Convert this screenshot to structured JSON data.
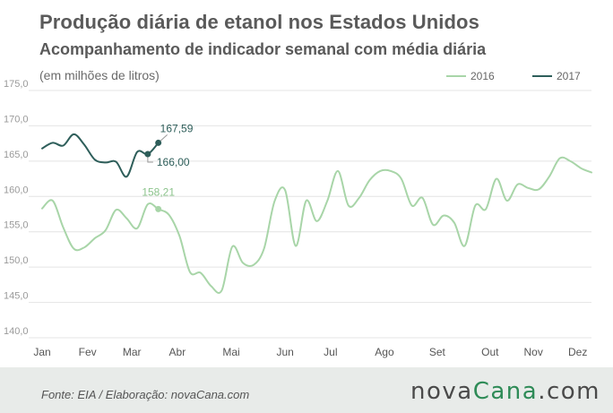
{
  "header": {
    "title": "Produção diária de etanol nos Estados Unidos",
    "subtitle": "Acompanhamento de indicador semanal com média diária",
    "unit_note": "(em milhões de litros)"
  },
  "footer": {
    "source": "Fonte:  EIA / Elaboração:  novaCana.com",
    "brand_prefix": "nova",
    "brand_accent": "Cana",
    "brand_suffix": ".com"
  },
  "colors": {
    "series_2016": "#a8d5a8",
    "series_2017": "#2e5e5a",
    "grid": "#e4e4e4",
    "tick_text": "#9a9a9a",
    "month_text": "#555555"
  },
  "chart_data": {
    "type": "line",
    "ylim": [
      140,
      175
    ],
    "y_ticks": [
      "140,0",
      "145,0",
      "150,0",
      "155,0",
      "160,0",
      "165,0",
      "170,0",
      "175,0"
    ],
    "y_tick_values": [
      140,
      145,
      150,
      155,
      160,
      165,
      170,
      175
    ],
    "x_range": [
      0,
      52
    ],
    "x_ticks": [
      "Jan",
      "Fev",
      "Mar",
      "Abr",
      "Mai",
      "Jun",
      "Jul",
      "Ago",
      "Set",
      "Out",
      "Nov",
      "Dez"
    ],
    "x_tick_values": [
      0,
      4.3,
      8.5,
      12.8,
      17.9,
      23.0,
      27.3,
      32.4,
      37.4,
      42.4,
      46.5,
      50.7
    ],
    "legend": "top-right",
    "grid": true,
    "series": [
      {
        "name": "2016",
        "x": [
          0,
          1,
          2,
          3,
          4,
          5,
          6,
          7,
          8,
          9,
          10,
          11,
          12,
          13,
          14,
          15,
          16,
          17,
          18,
          19,
          20,
          21,
          22,
          23,
          24,
          25,
          26,
          27,
          28,
          29,
          30,
          31,
          32,
          33,
          34,
          35,
          36,
          37,
          38,
          39,
          40,
          41,
          42,
          43,
          44,
          45,
          46,
          47,
          48,
          49,
          50,
          51,
          52
        ],
        "values": [
          158.3,
          159.4,
          155.6,
          152.6,
          152.8,
          154.1,
          155.2,
          158.1,
          156.9,
          155.5,
          158.9,
          158.21,
          157.4,
          154.4,
          149.3,
          149.2,
          147.3,
          146.7,
          152.9,
          150.6,
          150.3,
          152.6,
          159.3,
          160.9,
          153.0,
          159.4,
          156.5,
          159.4,
          163.6,
          158.7,
          159.8,
          162.3,
          163.6,
          163.6,
          162.5,
          158.7,
          159.8,
          156.0,
          157.3,
          156.3,
          153.0,
          158.7,
          158.2,
          162.5,
          159.4,
          161.7,
          161.2,
          161.0,
          162.8,
          165.4,
          165.0,
          164.0,
          163.4
        ]
      },
      {
        "name": "2017",
        "x": [
          0,
          1,
          2,
          3,
          4,
          5,
          6,
          7,
          8,
          9,
          10,
          11
        ],
        "values": [
          166.8,
          167.6,
          167.2,
          168.8,
          167.3,
          165.2,
          164.8,
          164.9,
          162.8,
          166.3,
          166.0,
          167.59
        ]
      }
    ],
    "annotations": [
      {
        "series": "2017",
        "x": 11,
        "y": 167.59,
        "label": "167,59"
      },
      {
        "series": "2017",
        "x": 10,
        "y": 166.0,
        "label": "166,00"
      },
      {
        "series": "2016",
        "x": 11,
        "y": 158.21,
        "label": "158,21"
      }
    ]
  }
}
